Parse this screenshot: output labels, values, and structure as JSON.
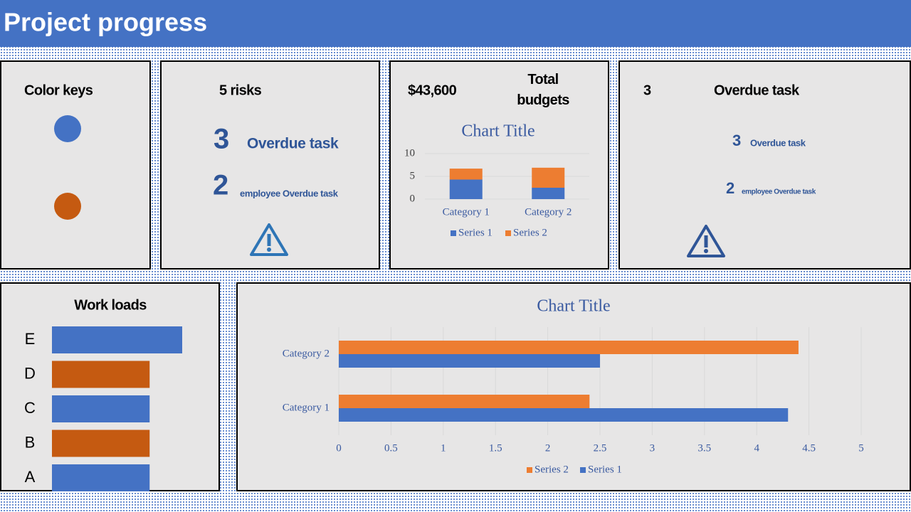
{
  "header": {
    "title": "Project progress"
  },
  "color_keys": {
    "title": "Color keys",
    "colors": [
      "#4472c4",
      "#c55a11"
    ]
  },
  "risks": {
    "title": "5 risks",
    "items": [
      {
        "count": 3,
        "label": "Overdue task"
      },
      {
        "count": 2,
        "label": "employee Overdue task"
      }
    ]
  },
  "budget": {
    "amount": "$43,600",
    "label": "Total budgets"
  },
  "overdue": {
    "count": 3,
    "label": "Overdue task",
    "items": [
      {
        "count": 3,
        "label": "Overdue task"
      },
      {
        "count": 2,
        "label": "employee Overdue task"
      }
    ]
  },
  "chart_data": [
    {
      "type": "stacked_bar",
      "title": "Chart Title",
      "categories": [
        "Category 1",
        "Category 2"
      ],
      "series": [
        {
          "name": "Series 1",
          "color": "#4472c4",
          "values": [
            4.3,
            2.5
          ]
        },
        {
          "name": "Series 2",
          "color": "#ed7d31",
          "values": [
            2.4,
            4.4
          ]
        }
      ],
      "ylim": [
        0,
        10
      ],
      "yticks": [
        0,
        5,
        10
      ],
      "grid": true
    },
    {
      "type": "hbar",
      "title": "Work loads",
      "categories": [
        "A",
        "B",
        "C",
        "D",
        "E"
      ],
      "values": [
        3,
        3,
        3,
        3,
        4
      ],
      "colors": [
        "#4472c4",
        "#c55a11",
        "#4472c4",
        "#c55a11",
        "#4472c4"
      ]
    },
    {
      "type": "grouped_hbar",
      "title": "Chart Title",
      "categories": [
        "Category 1",
        "Category 2"
      ],
      "series": [
        {
          "name": "Series 1",
          "color": "#4472c4",
          "values": [
            4.3,
            2.5
          ]
        },
        {
          "name": "Series 2",
          "color": "#ed7d31",
          "values": [
            2.4,
            4.4
          ]
        }
      ],
      "xlim": [
        0,
        5
      ],
      "xticks": [
        0,
        0.5,
        1,
        1.5,
        2,
        2.5,
        3,
        3.5,
        4,
        4.5,
        5
      ],
      "grid": true
    }
  ]
}
